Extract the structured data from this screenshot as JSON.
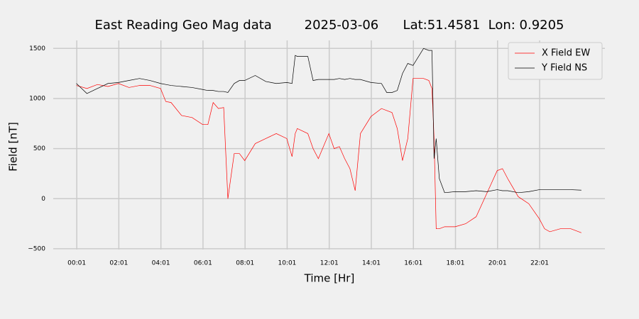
{
  "chart_data": {
    "type": "line",
    "title": "East Reading Geo Mag data        2025-03-06      Lat:51.4581  Lon: 0.9205",
    "x_label": "Time  [Hr]",
    "y_label": "Field  [nT]",
    "x": [
      0,
      0.5,
      1,
      1.5,
      2,
      2.5,
      3,
      3.5,
      4,
      4.25,
      4.5,
      5,
      5.5,
      6,
      6.25,
      6.5,
      6.75,
      7,
      7.2,
      7.5,
      7.75,
      8,
      8.5,
      9,
      9.5,
      10,
      10.25,
      10.4,
      10.5,
      11,
      11.25,
      11.5,
      12,
      12.25,
      12.5,
      12.75,
      13,
      13.25,
      13.5,
      14,
      14.5,
      14.75,
      15,
      15.25,
      15.5,
      15.75,
      16,
      16.5,
      16.75,
      16.9,
      17.0,
      17.1,
      17.25,
      17.5,
      18,
      18.5,
      19,
      19.5,
      20,
      20.25,
      20.5,
      21,
      21.5,
      22,
      22.25,
      22.5,
      23,
      23.5,
      24
    ],
    "series": [
      {
        "name": "X Field EW",
        "color": "#ff0000",
        "values": [
          1130,
          1100,
          1140,
          1120,
          1150,
          1110,
          1130,
          1130,
          1100,
          970,
          960,
          830,
          810,
          740,
          740,
          960,
          900,
          910,
          0,
          450,
          450,
          380,
          550,
          600,
          650,
          600,
          420,
          650,
          700,
          650,
          500,
          400,
          650,
          500,
          520,
          400,
          300,
          80,
          650,
          820,
          900,
          880,
          860,
          700,
          380,
          600,
          1200,
          1200,
          1180,
          1100,
          600,
          -300,
          -300,
          -280,
          -280,
          -250,
          -180,
          50,
          280,
          300,
          200,
          20,
          -50,
          -200,
          -300,
          -330,
          -300,
          -300,
          -340
        ]
      },
      {
        "name": "Y Field NS",
        "color": "#000000",
        "values": [
          1150,
          1050,
          1100,
          1150,
          1160,
          1180,
          1200,
          1180,
          1150,
          1140,
          1130,
          1120,
          1110,
          1090,
          1080,
          1080,
          1070,
          1070,
          1060,
          1150,
          1180,
          1180,
          1230,
          1170,
          1150,
          1160,
          1150,
          1430,
          1420,
          1420,
          1180,
          1190,
          1190,
          1190,
          1200,
          1190,
          1200,
          1190,
          1190,
          1160,
          1150,
          1060,
          1060,
          1080,
          1250,
          1350,
          1330,
          1500,
          1480,
          1480,
          400,
          600,
          200,
          60,
          70,
          70,
          80,
          70,
          90,
          80,
          80,
          60,
          70,
          90,
          90,
          90,
          90,
          90,
          85
        ]
      }
    ],
    "xlim": [
      -1.1,
      25.12
    ],
    "xticks": [
      {
        "value": 0.017,
        "label": "00:01"
      },
      {
        "value": 2.017,
        "label": "02:01"
      },
      {
        "value": 4.017,
        "label": "04:01"
      },
      {
        "value": 6.017,
        "label": "06:01"
      },
      {
        "value": 8.017,
        "label": "08:01"
      },
      {
        "value": 10.017,
        "label": "10:01"
      },
      {
        "value": 12.017,
        "label": "12:01"
      },
      {
        "value": 14.017,
        "label": "14:01"
      },
      {
        "value": 16.017,
        "label": "16:01"
      },
      {
        "value": 18.017,
        "label": "18:01"
      },
      {
        "value": 20.017,
        "label": "20:01"
      },
      {
        "value": 22.017,
        "label": "22:01"
      }
    ],
    "ylim": [
      -550,
      1580
    ],
    "yticks": [
      {
        "value": -500,
        "label": "−500"
      },
      0,
      500,
      1000,
      1500
    ],
    "grid": true,
    "legend": "upper right"
  }
}
